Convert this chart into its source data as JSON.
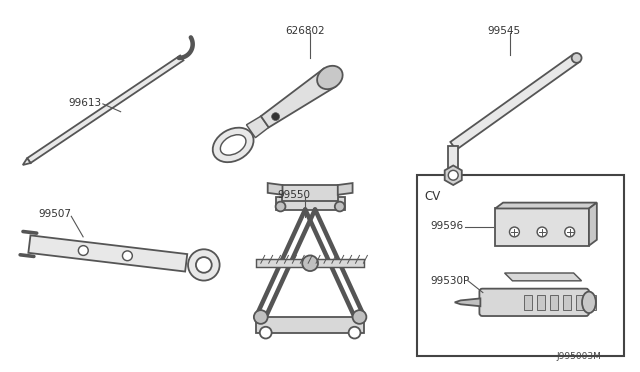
{
  "bg_color": "#ffffff",
  "line_color": "#555555",
  "text_color": "#333333",
  "diagram_id": "J995003M",
  "cv_label": "CV",
  "figsize": [
    6.4,
    3.72
  ],
  "dpi": 100,
  "lw": 1.3
}
